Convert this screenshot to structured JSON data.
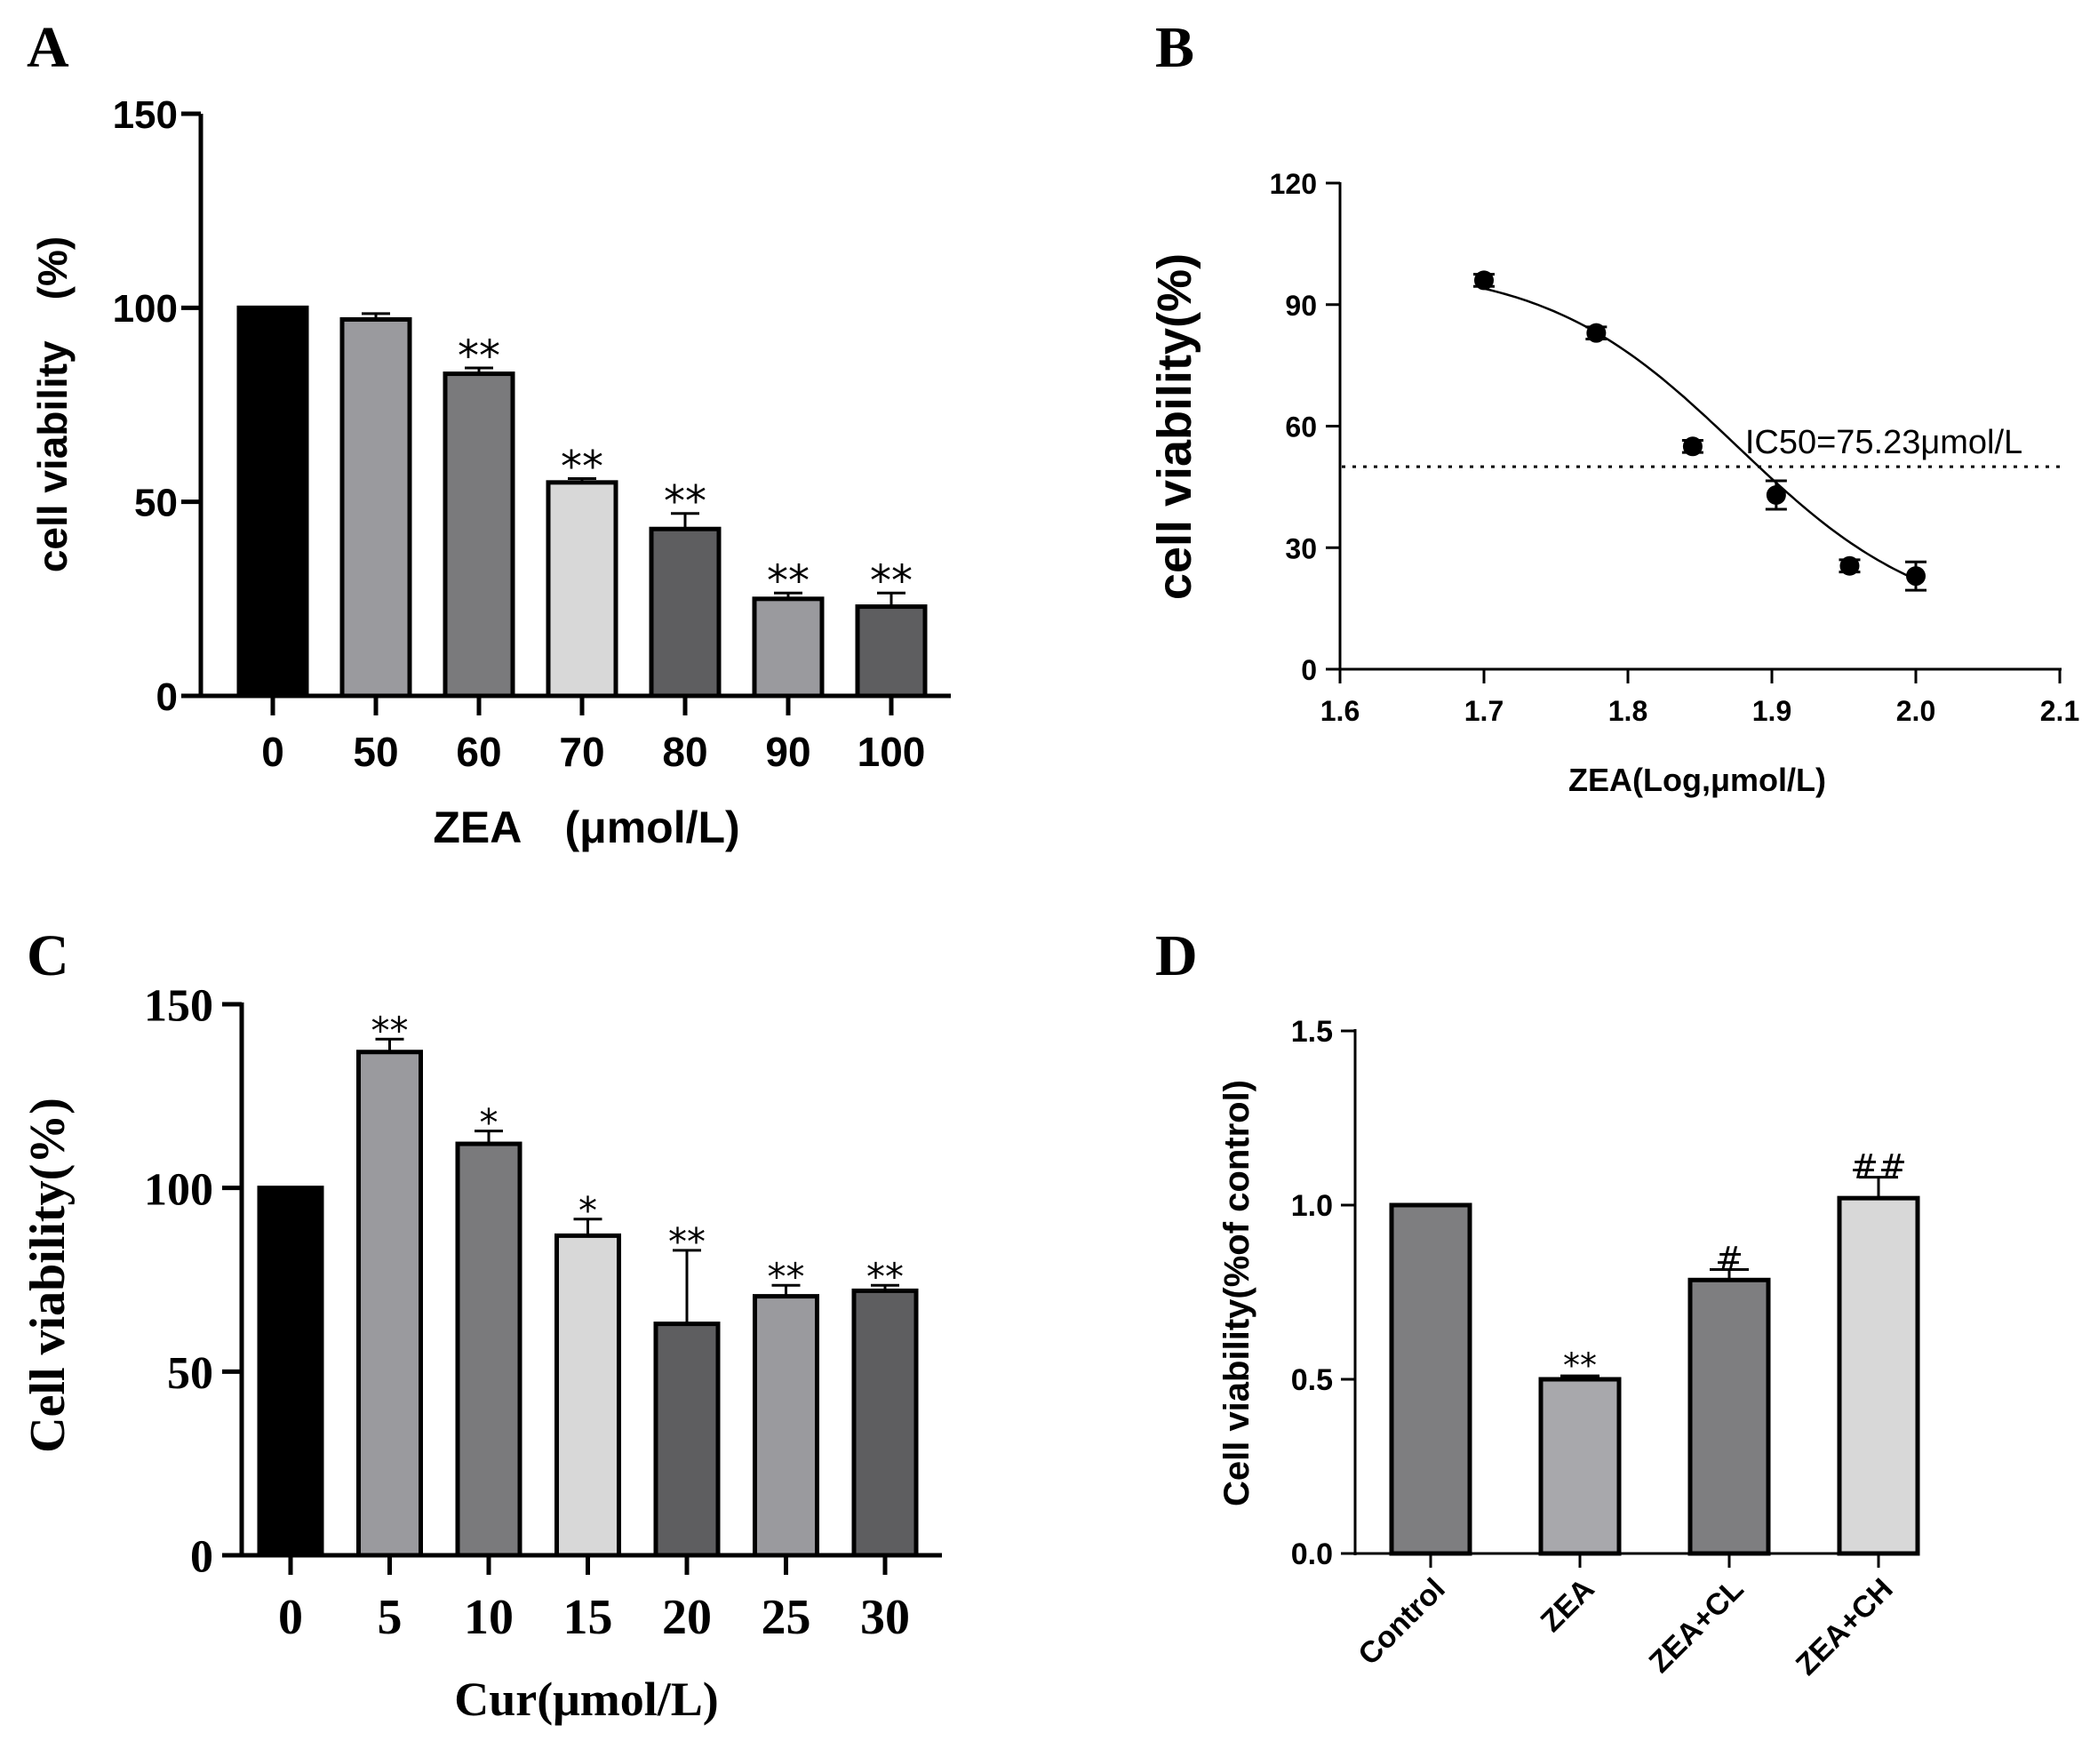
{
  "chart_data": [
    {
      "panel": "A",
      "type": "bar",
      "categories": [
        "0",
        "50",
        "60",
        "70",
        "80",
        "90",
        "100"
      ],
      "values": [
        100,
        97,
        83,
        55,
        43,
        25,
        23
      ],
      "errors": [
        0,
        1.5,
        1.5,
        1,
        4,
        1.5,
        3.5
      ],
      "significance": [
        "",
        "",
        "**",
        "**",
        "**",
        "**",
        "**"
      ],
      "fills": [
        "#000000",
        "#9a9a9e",
        "#7a7a7c",
        "#d8d8d8",
        "#5e5e60",
        "#9a9a9e",
        "#5e5e60"
      ],
      "xlabel": "ZEA　(μmol/L)",
      "ylabel": "cell viability　(%)",
      "ylim": [
        0,
        150
      ],
      "yticks": [
        "0",
        "50",
        "100",
        "150"
      ]
    },
    {
      "panel": "B",
      "type": "scatter",
      "x": [
        1.7,
        1.778,
        1.845,
        1.903,
        1.954,
        2.0
      ],
      "y": [
        96,
        83,
        55,
        43,
        25.5,
        23
      ],
      "errors": [
        1.5,
        1.5,
        1.5,
        3.5,
        1.5,
        3.5
      ],
      "fit": {
        "top": 100,
        "bottom": 10,
        "logIC50": 1.876,
        "hill": 6.5,
        "x_range": [
          1.7,
          2.0
        ]
      },
      "reference_line_y": 50,
      "annotation": "IC50=75.23μmol/L",
      "xlabel": "ZEA(Log,μmol/L)",
      "ylabel": "cell viability(%)",
      "xlim": [
        1.6,
        2.1
      ],
      "ylim": [
        0,
        120
      ],
      "xticks": [
        "1.6",
        "1.7",
        "1.8",
        "1.9",
        "2.0",
        "2.1"
      ],
      "yticks": [
        "0",
        "30",
        "60",
        "90",
        "120"
      ]
    },
    {
      "panel": "C",
      "type": "bar",
      "categories": [
        "0",
        "5",
        "10",
        "15",
        "20",
        "25",
        "30"
      ],
      "values": [
        100,
        137,
        112,
        87,
        63,
        70.5,
        72
      ],
      "errors": [
        0,
        3.5,
        3.5,
        4.5,
        20,
        3,
        1.5
      ],
      "significance": [
        "",
        "**",
        "*",
        "*",
        "**",
        "**",
        "**"
      ],
      "fills": [
        "#000000",
        "#9a9a9e",
        "#7a7a7c",
        "#d8d8d8",
        "#5e5e60",
        "#9a9a9e",
        "#5e5e60"
      ],
      "xlabel": "Cur(μmol/L)",
      "ylabel": "Cell viability(%)",
      "ylim": [
        0,
        150
      ],
      "yticks": [
        "0",
        "50",
        "100",
        "150"
      ]
    },
    {
      "panel": "D",
      "type": "bar",
      "categories": [
        "Control",
        "ZEA",
        "ZEA+CL",
        "ZEA+CH"
      ],
      "values": [
        1.0,
        0.5,
        0.785,
        1.02
      ],
      "errors": [
        0,
        0.01,
        0.03,
        0.06
      ],
      "significance": [
        "",
        "**",
        "#",
        "##"
      ],
      "fills": [
        "#7e7e80",
        "#a8a8ac",
        "#7e7e80",
        "#d8d8d8"
      ],
      "xlabel": "",
      "ylabel": "Cell viability(%of control)",
      "ylim": [
        0,
        1.5
      ],
      "yticks": [
        "0.0",
        "0.5",
        "1.0",
        "1.5"
      ]
    }
  ]
}
